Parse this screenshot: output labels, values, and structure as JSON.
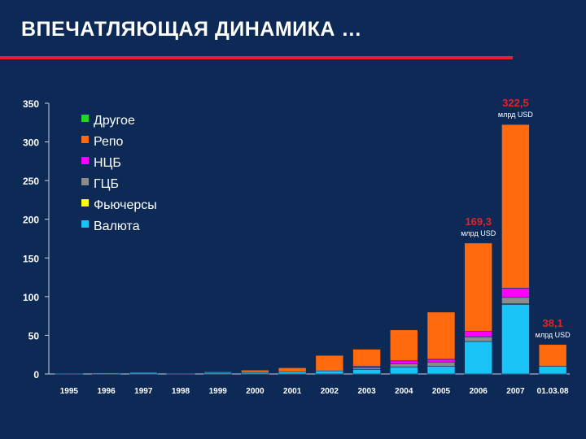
{
  "slide": {
    "title": "ВПЕЧАТЛЯЮЩАЯ ДИНАМИКА …",
    "accent_color": "#e8202a",
    "background_color": "#0d2a57"
  },
  "chart_data": {
    "type": "bar",
    "stacked": true,
    "title": "",
    "xlabel": "",
    "ylabel": "",
    "ylim": [
      0,
      350
    ],
    "yticks": [
      0,
      50,
      100,
      150,
      200,
      250,
      300,
      350
    ],
    "grid": false,
    "legend_position": "top-left",
    "categories": [
      "1995",
      "1996",
      "1997",
      "1998",
      "1999",
      "2000",
      "2001",
      "2002",
      "2003",
      "2004",
      "2005",
      "2006",
      "2007",
      "01.03.08"
    ],
    "series": [
      {
        "name": "Валюта",
        "color": "#19c3f5",
        "values": [
          1,
          1.5,
          2,
          1,
          2,
          2,
          3,
          4,
          6,
          9,
          10,
          42,
          90,
          10
        ]
      },
      {
        "name": "Фьючерсы",
        "color": "#ffff00",
        "values": [
          0,
          0,
          0,
          0,
          0,
          0,
          0,
          0,
          0,
          0,
          0,
          0,
          1,
          0
        ]
      },
      {
        "name": "ГЦБ",
        "color": "#8c8c8c",
        "values": [
          0,
          0,
          0,
          0,
          0,
          0,
          0,
          0,
          2,
          4,
          5,
          6,
          8,
          0
        ]
      },
      {
        "name": "НЦБ",
        "color": "#ff00ff",
        "values": [
          0,
          0,
          0,
          0,
          0,
          0,
          0,
          0,
          2,
          4,
          4,
          7,
          12,
          0
        ]
      },
      {
        "name": "Репо",
        "color": "#ff6a0f",
        "values": [
          0,
          0.5,
          0.5,
          0,
          1,
          3,
          5,
          20,
          22,
          40,
          61,
          114.3,
          211.5,
          28.1
        ]
      },
      {
        "name": "Другое",
        "color": "#22d42c",
        "values": [
          0,
          0,
          0,
          0,
          0,
          0,
          0,
          0,
          0,
          0,
          0,
          0,
          0,
          0
        ]
      }
    ],
    "annotations": [
      {
        "category": "2006",
        "value": "169,3",
        "unit": "млрд USD"
      },
      {
        "category": "2007",
        "value": "322,5",
        "unit": "млрд USD"
      },
      {
        "category": "01.03.08",
        "value": "38,1",
        "unit": "млрд USD"
      }
    ]
  }
}
